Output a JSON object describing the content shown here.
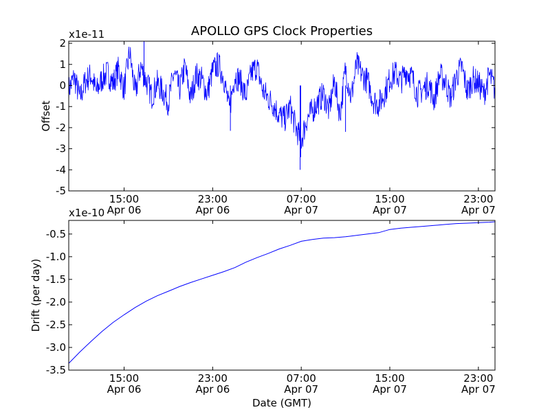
{
  "figure": {
    "title": "APOLLO GPS Clock Properties"
  },
  "chart_data": [
    {
      "type": "line",
      "ylabel": "Offset",
      "yscale_label": "x1e-11",
      "ylim": [
        -5,
        2.1
      ],
      "yticks": [
        "2",
        "1",
        "0",
        "-1",
        "-2",
        "-3",
        "-4",
        "-5"
      ],
      "ytick_values": [
        2,
        1,
        0,
        -1,
        -2,
        -3,
        -4,
        -5
      ],
      "xlim_hours": [
        10.0,
        48.5
      ],
      "xticks": [
        {
          "time": "15:00",
          "date": "Apr 06",
          "hour": 15
        },
        {
          "time": "23:00",
          "date": "Apr 06",
          "hour": 23
        },
        {
          "time": "07:00",
          "date": "Apr 07",
          "hour": 31
        },
        {
          "time": "15:00",
          "date": "Apr 07",
          "hour": 39
        },
        {
          "time": "23:00",
          "date": "Apr 07",
          "hour": 47
        }
      ],
      "color": "#0000ff",
      "series": [
        {
          "x": [
            10.0,
            10.5,
            11.0,
            11.5,
            12.0,
            12.5,
            13.0,
            13.5,
            14.0,
            14.5,
            15.0,
            15.5,
            16.0,
            16.5,
            17.0,
            17.5,
            18.0,
            18.5,
            19.0,
            19.5,
            20.0,
            20.5,
            21.0,
            21.5,
            22.0,
            22.5,
            23.0,
            23.5,
            24.0,
            24.5,
            25.0,
            25.5,
            26.0,
            26.5,
            27.0,
            27.5,
            28.0,
            28.5,
            29.0,
            29.5,
            30.0,
            30.5,
            31.0,
            31.5,
            32.0,
            32.5,
            33.0,
            33.5,
            34.0,
            34.5,
            35.0,
            35.5,
            36.0,
            36.5,
            37.0,
            37.5,
            38.0,
            38.5,
            39.0,
            39.5,
            40.0,
            40.5,
            41.0,
            41.5,
            42.0,
            42.5,
            43.0,
            43.5,
            44.0,
            44.5,
            45.0,
            45.5,
            46.0,
            46.5,
            47.0,
            47.5,
            48.0,
            48.5
          ],
          "values": [
            -0.2,
            0.4,
            -0.6,
            0.2,
            0.5,
            -0.3,
            0.3,
            0.6,
            0.1,
            0.8,
            -0.2,
            1.6,
            -0.4,
            0.9,
            0.2,
            -0.5,
            0.1,
            -0.3,
            -0.8,
            0.6,
            -0.2,
            0.9,
            -0.6,
            0.5,
            0.3,
            -0.4,
            0.7,
            1.0,
            0.4,
            -1.2,
            0.5,
            0.2,
            -0.5,
            0.6,
            0.9,
            -0.2,
            -0.6,
            -0.9,
            -1.4,
            -1.6,
            -1.0,
            -2.0,
            -2.6,
            -1.6,
            -1.2,
            -0.8,
            -0.4,
            -1.2,
            0.2,
            -1.4,
            0.8,
            -0.6,
            1.0,
            0.5,
            0.2,
            -0.7,
            -0.9,
            -0.4,
            0.3,
            0.6,
            0.2,
            0.7,
            0.4,
            -0.4,
            -0.2,
            0.1,
            -0.7,
            0.5,
            0.2,
            -0.6,
            0.4,
            0.9,
            -0.3,
            0.3,
            0.1,
            -0.4,
            0.5,
            -0.2
          ]
        }
      ]
    },
    {
      "type": "line",
      "ylabel": "Drift (per day)",
      "xlabel": "Date (GMT)",
      "yscale_label": "x1e-10",
      "ylim": [
        -3.5,
        -0.2
      ],
      "yticks": [
        "-0.5",
        "-1.0",
        "-1.5",
        "-2.0",
        "-2.5",
        "-3.0",
        "-3.5"
      ],
      "ytick_values": [
        -0.5,
        -1.0,
        -1.5,
        -2.0,
        -2.5,
        -3.0,
        -3.5
      ],
      "xlim_hours": [
        10.0,
        48.5
      ],
      "xticks": [
        {
          "time": "15:00",
          "date": "Apr 06",
          "hour": 15
        },
        {
          "time": "23:00",
          "date": "Apr 06",
          "hour": 23
        },
        {
          "time": "07:00",
          "date": "Apr 07",
          "hour": 31
        },
        {
          "time": "15:00",
          "date": "Apr 07",
          "hour": 39
        },
        {
          "time": "23:00",
          "date": "Apr 07",
          "hour": 47
        }
      ],
      "color": "#0000ff",
      "series": [
        {
          "x": [
            10.0,
            11.0,
            12.0,
            13.0,
            14.0,
            15.0,
            16.0,
            17.0,
            18.0,
            19.0,
            20.0,
            21.0,
            22.0,
            23.0,
            24.0,
            25.0,
            26.0,
            27.0,
            28.0,
            29.0,
            30.0,
            31.0,
            32.0,
            33.0,
            34.0,
            35.0,
            36.0,
            37.0,
            38.0,
            39.0,
            40.0,
            41.0,
            42.0,
            43.0,
            44.0,
            45.0,
            46.0,
            47.0,
            48.0,
            48.5
          ],
          "values": [
            -3.35,
            -3.1,
            -2.87,
            -2.65,
            -2.45,
            -2.28,
            -2.12,
            -1.98,
            -1.86,
            -1.76,
            -1.66,
            -1.57,
            -1.49,
            -1.41,
            -1.33,
            -1.24,
            -1.12,
            -1.02,
            -0.93,
            -0.83,
            -0.75,
            -0.66,
            -0.62,
            -0.59,
            -0.58,
            -0.56,
            -0.53,
            -0.5,
            -0.47,
            -0.4,
            -0.37,
            -0.35,
            -0.33,
            -0.31,
            -0.29,
            -0.27,
            -0.26,
            -0.25,
            -0.24,
            -0.23
          ]
        }
      ]
    }
  ]
}
